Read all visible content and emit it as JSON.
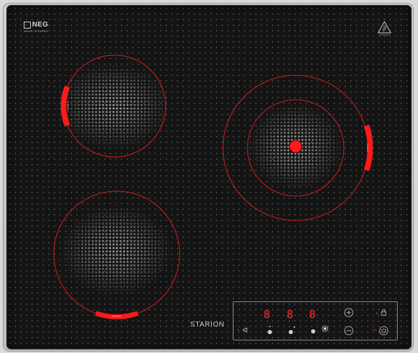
{
  "brand": {
    "logo_text": "NEG",
    "logo_sub": "MADE IN JAPAN",
    "product_name": "STARION"
  },
  "zones": [
    {
      "id": "rear-left",
      "type": "single",
      "label": "HI-LIGHT"
    },
    {
      "id": "rear-right",
      "type": "dual",
      "label": "HI-LIGHT"
    },
    {
      "id": "front-left",
      "type": "single",
      "label": "HI-LIGHT"
    }
  ],
  "control_panel": {
    "displays": [
      "8",
      "8",
      "8"
    ],
    "power_indicator": "ON",
    "icons": {
      "sound": "speaker-icon",
      "plus": "plus-icon",
      "minus": "minus-icon",
      "lock": "lock-icon",
      "power": "power-icon"
    }
  },
  "colors": {
    "glass": "#141414",
    "accent": "#ff2a2a",
    "frame": "#c4c4c4"
  }
}
